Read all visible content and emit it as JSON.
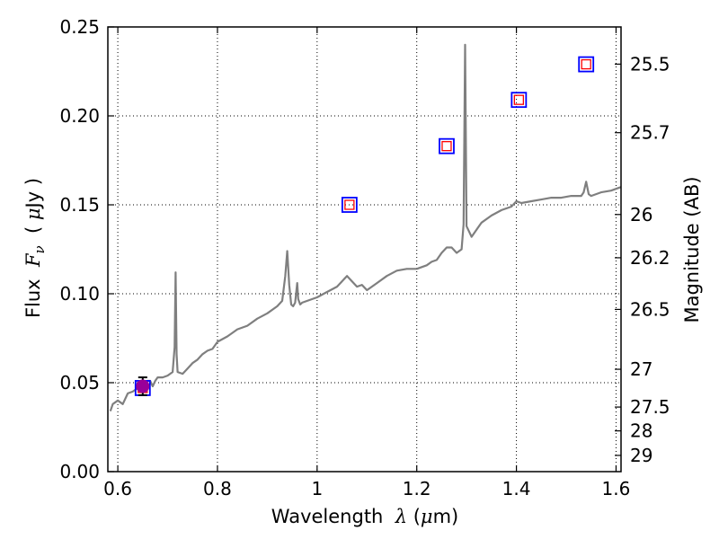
{
  "chart_data": {
    "type": "line",
    "xlabel": "Wavelength  λ (μm)",
    "xlabel_parts": [
      "Wavelength  ",
      "λ",
      " (",
      "μ",
      "m)"
    ],
    "ylabel": "Flux  Fν  ( μJy )",
    "ylabel_parts": [
      "Flux  ",
      "F",
      "ν",
      "  ( ",
      "μ",
      "Jy )"
    ],
    "y2label": "Magnitude (AB)",
    "xlim": [
      0.58,
      1.61
    ],
    "ylim": [
      0.0,
      0.25
    ],
    "x_ticks": [
      0.6,
      0.8,
      1.0,
      1.2,
      1.4,
      1.6
    ],
    "x_tick_labels": [
      "0.6",
      "0.8",
      "1",
      "1.2",
      "1.4",
      "1.6"
    ],
    "y_ticks": [
      0.0,
      0.05,
      0.1,
      0.15,
      0.2,
      0.25
    ],
    "y_tick_labels": [
      "0.00",
      "0.05",
      "0.10",
      "0.15",
      "0.20",
      "0.25"
    ],
    "y2_ticks": [
      25.5,
      25.7,
      26,
      26.2,
      26.5,
      27,
      27.5,
      28,
      29
    ],
    "y2_tick_labels": [
      "25.5",
      "25.7",
      "26",
      "26.2",
      "26.5",
      "27",
      "27.5",
      "28",
      "29"
    ],
    "grid": true,
    "grid_style": "dotted",
    "colors": {
      "model": "#7f7f7f",
      "box_outer": "#0000ff",
      "box_inner": "#ff0000",
      "detection": "#990099",
      "axes": "#000000",
      "grid": "#000000"
    },
    "series": [
      {
        "name": "model spectrum",
        "style": "line",
        "x": [
          0.585,
          0.59,
          0.6,
          0.61,
          0.62,
          0.63,
          0.64,
          0.65,
          0.66,
          0.665,
          0.67,
          0.675,
          0.68,
          0.69,
          0.7,
          0.705,
          0.71,
          0.714,
          0.716,
          0.718,
          0.72,
          0.73,
          0.74,
          0.75,
          0.76,
          0.77,
          0.78,
          0.79,
          0.8,
          0.82,
          0.84,
          0.86,
          0.88,
          0.9,
          0.92,
          0.93,
          0.936,
          0.94,
          0.944,
          0.948,
          0.952,
          0.956,
          0.96,
          0.962,
          0.966,
          0.97,
          1.0,
          1.02,
          1.04,
          1.06,
          1.08,
          1.09,
          1.1,
          1.12,
          1.14,
          1.16,
          1.18,
          1.2,
          1.22,
          1.23,
          1.24,
          1.25,
          1.26,
          1.27,
          1.28,
          1.29,
          1.294,
          1.297,
          1.3,
          1.305,
          1.31,
          1.32,
          1.33,
          1.35,
          1.37,
          1.39,
          1.4,
          1.41,
          1.43,
          1.45,
          1.47,
          1.49,
          1.51,
          1.53,
          1.535,
          1.54,
          1.545,
          1.55,
          1.57,
          1.59,
          1.61
        ],
        "y": [
          0.034,
          0.038,
          0.04,
          0.038,
          0.044,
          0.045,
          0.047,
          0.047,
          0.051,
          0.051,
          0.048,
          0.051,
          0.053,
          0.053,
          0.054,
          0.055,
          0.056,
          0.07,
          0.112,
          0.066,
          0.056,
          0.055,
          0.058,
          0.061,
          0.063,
          0.066,
          0.068,
          0.069,
          0.073,
          0.076,
          0.08,
          0.082,
          0.086,
          0.089,
          0.093,
          0.096,
          0.11,
          0.124,
          0.105,
          0.094,
          0.093,
          0.095,
          0.106,
          0.097,
          0.094,
          0.095,
          0.098,
          0.101,
          0.104,
          0.11,
          0.104,
          0.105,
          0.102,
          0.106,
          0.11,
          0.113,
          0.114,
          0.114,
          0.116,
          0.118,
          0.119,
          0.123,
          0.126,
          0.126,
          0.123,
          0.125,
          0.139,
          0.24,
          0.138,
          0.135,
          0.132,
          0.136,
          0.14,
          0.144,
          0.147,
          0.149,
          0.152,
          0.151,
          0.152,
          0.153,
          0.154,
          0.154,
          0.155,
          0.155,
          0.157,
          0.163,
          0.156,
          0.155,
          0.157,
          0.158,
          0.16
        ]
      },
      {
        "name": "photometry boxes",
        "style": "squares",
        "x": [
          0.65,
          1.065,
          1.26,
          1.405,
          1.54
        ],
        "y": [
          0.047,
          0.15,
          0.183,
          0.209,
          0.229
        ]
      },
      {
        "name": "detection",
        "style": "errorbar",
        "x": [
          0.65
        ],
        "y": [
          0.048
        ],
        "yerr": [
          0.005
        ]
      }
    ]
  }
}
